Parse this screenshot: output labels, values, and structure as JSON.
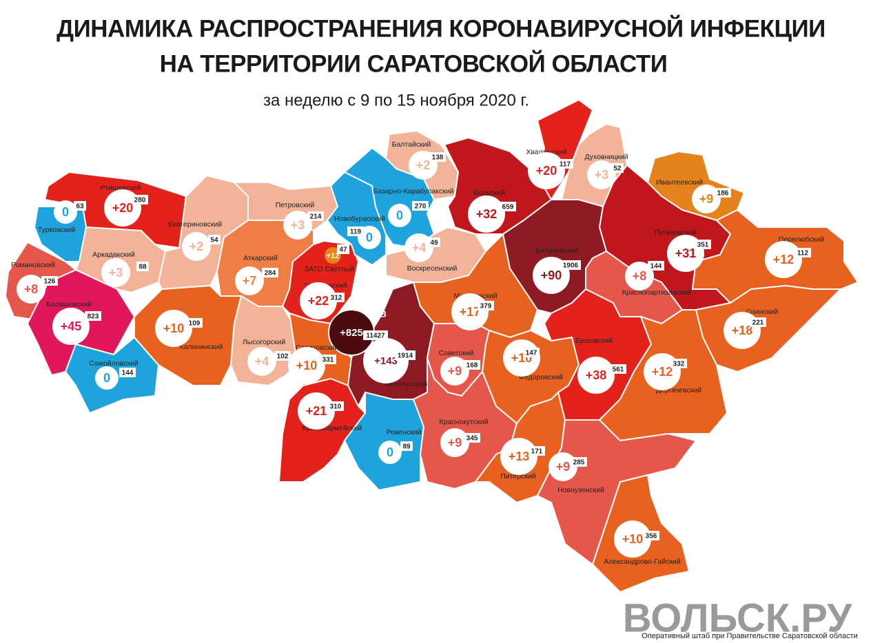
{
  "header": {
    "title": [
      "ДИНАМИКА РАСПРОСТРАНЕНИЯ КОРОНАВИРУСНОЙ ИНФЕКЦИИ",
      "НА ТЕРРИТОРИИ САРАТОВСКОЙ ОБЛАСТИ"
    ],
    "subtitle": "за неделю с 9 по 15 ноября 2020 г."
  },
  "regions": [
    {
      "name": "Ртищевский",
      "increase": "+20",
      "total": "280"
    },
    {
      "name": "Турковский",
      "increase": "0",
      "total": "63"
    },
    {
      "name": "Романовский",
      "increase": "+8",
      "total": "126"
    },
    {
      "name": "Аркадакский",
      "increase": "+3",
      "total": "88"
    },
    {
      "name": "Балашовский",
      "increase": "+45",
      "total": "823"
    },
    {
      "name": "Самойловский",
      "increase": "0",
      "total": "144"
    },
    {
      "name": "Екатериновский",
      "increase": "+2",
      "total": "54"
    },
    {
      "name": "Петровский",
      "increase": "+3",
      "total": "214"
    },
    {
      "name": "Аткарский",
      "increase": "+7",
      "total": "284"
    },
    {
      "name": "Калининский",
      "increase": "+10",
      "total": "109"
    },
    {
      "name": "Лысогорский",
      "increase": "+4",
      "total": "102"
    },
    {
      "name": "ЗАТО Светлый",
      "increase": "+12",
      "total": "47"
    },
    {
      "name": "Татищевский",
      "increase": "+22",
      "total": "312"
    },
    {
      "name": "Новобурасский",
      "increase": "0",
      "total": "119"
    },
    {
      "name": "Балтайский",
      "increase": "+2",
      "total": "138"
    },
    {
      "name": "Базарно-Карабулакский",
      "increase": "0",
      "total": "270"
    },
    {
      "name": "Вольский",
      "increase": "+32",
      "total": "659"
    },
    {
      "name": "Хвалынский",
      "increase": "+20",
      "total": "117"
    },
    {
      "name": "Духовницкий",
      "increase": "+3",
      "total": "52"
    },
    {
      "name": "Ивантеевский",
      "increase": "+9",
      "total": "186"
    },
    {
      "name": "Пугачевский",
      "increase": "+31",
      "total": "351"
    },
    {
      "name": "Перелюбский",
      "increase": "+12",
      "total": "112"
    },
    {
      "name": "Балаковский",
      "increase": "+90",
      "total": "1906"
    },
    {
      "name": "Воскресенский",
      "increase": "+4",
      "total": "49"
    },
    {
      "name": "Краснопартизанский",
      "increase": "+8",
      "total": "144"
    },
    {
      "name": "Марксовский",
      "increase": "+17",
      "total": "379"
    },
    {
      "name": "Озинский",
      "increase": "+18",
      "total": "221"
    },
    {
      "name": "САРАТОВ",
      "increase": "+825",
      "total": "11427"
    },
    {
      "name": "Энгельсский",
      "increase": "+143",
      "total": "1914"
    },
    {
      "name": "Саратовский",
      "increase": "+10",
      "total": "331"
    },
    {
      "name": "Советский",
      "increase": "+9",
      "total": "168"
    },
    {
      "name": "Федоровский",
      "increase": "+10",
      "total": "147"
    },
    {
      "name": "Ершовский",
      "increase": "+38",
      "total": "561"
    },
    {
      "name": "Дергачевский",
      "increase": "+12",
      "total": "332"
    },
    {
      "name": "Красноармейский",
      "increase": "+21",
      "total": "310"
    },
    {
      "name": "Ровенский",
      "increase": "0",
      "total": "89"
    },
    {
      "name": "Краснокутский",
      "increase": "+9",
      "total": "345"
    },
    {
      "name": "Питерский",
      "increase": "+13",
      "total": "171"
    },
    {
      "name": "Новоузенский",
      "increase": "+9",
      "total": "285"
    },
    {
      "name": "Александрово-Гайский",
      "increase": "+10",
      "total": "356"
    }
  ],
  "watermark": "ВОЛЬСК.РУ",
  "source": "Оперативный штаб при Правительстве Саратовской области"
}
